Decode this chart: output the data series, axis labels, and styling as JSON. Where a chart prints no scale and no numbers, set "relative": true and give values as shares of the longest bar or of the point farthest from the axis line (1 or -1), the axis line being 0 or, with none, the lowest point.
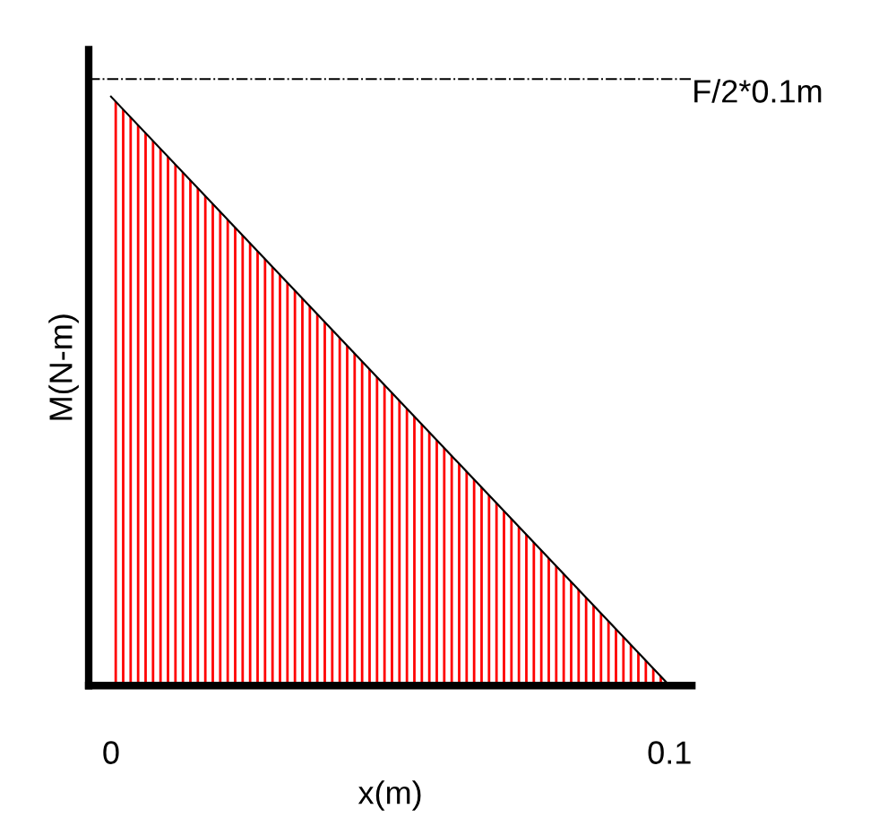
{
  "chart_data": {
    "type": "area",
    "relative": true,
    "xlabel": "x(m)",
    "ylabel": "M(N-m)",
    "x": [
      0,
      0.1
    ],
    "series": [
      {
        "color": "#ff0000",
        "values": [
          1,
          0
        ]
      }
    ],
    "xlim": [
      -0.004,
      0.104
    ],
    "xticks": [
      0,
      0.1
    ],
    "tick_labels": "x",
    "grid": false,
    "legend": false,
    "ref_lines": [
      {
        "axis": "y",
        "value": 1.03,
        "label": "F/2*0.1m",
        "color": "#000000",
        "line_style": "dashdot"
      }
    ]
  }
}
